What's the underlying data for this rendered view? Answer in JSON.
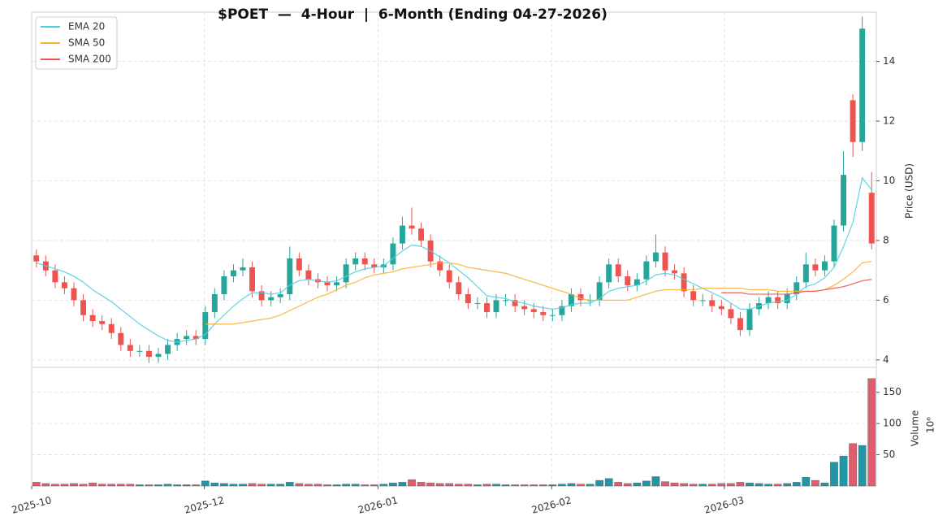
{
  "chart_data": [
    {
      "type": "candlestick",
      "title": "$POET  —  4-Hour  |  6-Month (Ending 04-27-2026)",
      "y_label": "Price (USD)",
      "xlim": [
        -0.5,
        89.5
      ],
      "ylim": [
        3.75,
        15.65
      ],
      "yticks": [
        4,
        6,
        8,
        10,
        12,
        14
      ],
      "grid": true,
      "legend": "upper left",
      "up_color": "#26a69a",
      "down_color": "#ef5350",
      "open": [
        7.5,
        7.3,
        7.0,
        6.6,
        6.4,
        6.0,
        5.5,
        5.3,
        5.2,
        4.9,
        4.5,
        4.3,
        4.3,
        4.1,
        4.2,
        4.5,
        4.7,
        4.8,
        4.7,
        5.6,
        6.2,
        6.8,
        7.0,
        7.1,
        6.3,
        6.0,
        6.1,
        6.2,
        7.4,
        7.0,
        6.7,
        6.6,
        6.5,
        6.6,
        7.2,
        7.4,
        7.2,
        7.1,
        7.2,
        7.9,
        8.5,
        8.4,
        8.0,
        7.3,
        7.0,
        6.6,
        6.2,
        5.9,
        5.9,
        5.6,
        6.0,
        6.0,
        5.8,
        5.7,
        5.6,
        5.5,
        5.5,
        5.8,
        6.2,
        6.0,
        6.0,
        6.6,
        7.2,
        6.8,
        6.5,
        6.7,
        7.3,
        7.6,
        7.0,
        6.9,
        6.3,
        6.0,
        6.0,
        5.8,
        5.7,
        5.4,
        5.0,
        5.7,
        5.9,
        6.1,
        5.9,
        6.2,
        6.6,
        7.2,
        7.0,
        7.3,
        8.5,
        12.7,
        11.3,
        9.6
      ],
      "high": [
        7.7,
        7.5,
        7.2,
        6.8,
        6.6,
        6.2,
        5.7,
        5.5,
        5.4,
        5.1,
        4.7,
        4.5,
        4.5,
        4.4,
        4.7,
        4.9,
        5.0,
        5.0,
        5.8,
        6.4,
        7.0,
        7.2,
        7.4,
        7.3,
        6.5,
        6.3,
        6.4,
        7.8,
        7.6,
        7.2,
        6.9,
        6.8,
        6.8,
        7.4,
        7.6,
        7.6,
        7.4,
        7.4,
        8.1,
        8.8,
        9.1,
        8.6,
        8.2,
        7.5,
        7.2,
        6.8,
        6.4,
        6.1,
        6.1,
        6.2,
        6.2,
        6.2,
        6.0,
        5.9,
        5.8,
        5.7,
        6.0,
        6.4,
        6.4,
        6.2,
        6.8,
        7.4,
        7.4,
        7.0,
        6.9,
        7.5,
        8.2,
        7.8,
        7.2,
        7.1,
        6.5,
        6.2,
        6.2,
        6.0,
        5.9,
        5.6,
        5.9,
        6.1,
        6.3,
        6.3,
        6.4,
        6.8,
        7.6,
        7.4,
        7.5,
        8.7,
        11.0,
        12.9,
        15.5,
        10.3
      ],
      "low": [
        7.1,
        6.8,
        6.4,
        6.2,
        5.8,
        5.3,
        5.1,
        5.0,
        4.7,
        4.3,
        4.1,
        4.1,
        3.9,
        3.9,
        4.0,
        4.3,
        4.5,
        4.5,
        4.5,
        5.4,
        6.0,
        6.6,
        6.8,
        6.1,
        5.8,
        5.8,
        5.9,
        6.0,
        6.8,
        6.5,
        6.4,
        6.3,
        6.3,
        6.4,
        7.0,
        7.0,
        6.9,
        6.9,
        7.0,
        7.7,
        8.2,
        7.8,
        7.1,
        6.8,
        6.4,
        6.0,
        5.7,
        5.7,
        5.4,
        5.4,
        5.8,
        5.6,
        5.5,
        5.4,
        5.3,
        5.3,
        5.3,
        5.6,
        5.8,
        5.8,
        5.8,
        6.4,
        6.6,
        6.3,
        6.3,
        6.5,
        7.1,
        6.8,
        6.7,
        6.1,
        5.8,
        5.8,
        5.6,
        5.5,
        5.2,
        4.8,
        4.8,
        5.5,
        5.7,
        5.7,
        5.7,
        6.0,
        6.4,
        6.8,
        6.8,
        7.1,
        8.3,
        10.8,
        11.0,
        7.7
      ],
      "close": [
        7.3,
        7.0,
        6.6,
        6.4,
        6.0,
        5.5,
        5.3,
        5.2,
        4.9,
        4.5,
        4.3,
        4.3,
        4.1,
        4.2,
        4.5,
        4.7,
        4.8,
        4.7,
        5.6,
        6.2,
        6.8,
        7.0,
        7.1,
        6.3,
        6.0,
        6.1,
        6.2,
        7.4,
        7.0,
        6.7,
        6.6,
        6.5,
        6.6,
        7.2,
        7.4,
        7.2,
        7.1,
        7.2,
        7.9,
        8.5,
        8.4,
        8.0,
        7.3,
        7.0,
        6.6,
        6.2,
        5.9,
        5.9,
        5.6,
        6.0,
        6.0,
        5.8,
        5.7,
        5.6,
        5.5,
        5.5,
        5.8,
        6.2,
        6.0,
        6.0,
        6.6,
        7.2,
        6.8,
        6.5,
        6.7,
        7.3,
        7.6,
        7.0,
        6.9,
        6.3,
        6.0,
        6.0,
        5.8,
        5.7,
        5.4,
        5.0,
        5.7,
        5.9,
        6.1,
        5.9,
        6.2,
        6.6,
        7.2,
        7.0,
        7.3,
        8.5,
        10.2,
        11.3,
        15.1,
        7.9
      ],
      "series": [
        {
          "name": "EMA 20",
          "color": "#4dd0e1",
          "values": [
            7.25,
            7.15,
            7.05,
            6.95,
            6.8,
            6.6,
            6.35,
            6.15,
            5.95,
            5.7,
            5.45,
            5.2,
            5.0,
            4.8,
            4.65,
            4.6,
            4.65,
            4.7,
            4.85,
            5.2,
            5.5,
            5.8,
            6.05,
            6.25,
            6.25,
            6.2,
            6.25,
            6.5,
            6.65,
            6.7,
            6.65,
            6.6,
            6.65,
            6.8,
            6.95,
            7.05,
            7.1,
            7.15,
            7.4,
            7.65,
            7.85,
            7.8,
            7.65,
            7.45,
            7.25,
            7.0,
            6.75,
            6.45,
            6.15,
            6.1,
            6.05,
            5.95,
            5.9,
            5.8,
            5.75,
            5.7,
            5.75,
            5.85,
            5.9,
            5.9,
            6.05,
            6.3,
            6.4,
            6.45,
            6.5,
            6.65,
            6.85,
            6.9,
            6.85,
            6.7,
            6.55,
            6.4,
            6.25,
            6.1,
            5.9,
            5.7,
            5.7,
            5.8,
            5.9,
            5.95,
            6.0,
            6.2,
            6.45,
            6.55,
            6.75,
            7.1,
            7.8,
            8.6,
            10.1,
            9.7
          ]
        },
        {
          "name": "SMA 50",
          "color": "#f9b233",
          "values": [
            null,
            null,
            null,
            null,
            null,
            null,
            null,
            null,
            null,
            null,
            null,
            null,
            null,
            null,
            null,
            null,
            null,
            null,
            5.2,
            5.2,
            5.2,
            5.2,
            5.25,
            5.3,
            5.35,
            5.4,
            5.5,
            5.65,
            5.8,
            5.95,
            6.1,
            6.2,
            6.35,
            6.5,
            6.6,
            6.75,
            6.85,
            6.9,
            6.95,
            7.05,
            7.1,
            7.15,
            7.2,
            7.25,
            7.25,
            7.2,
            7.1,
            7.05,
            7.0,
            6.95,
            6.9,
            6.8,
            6.7,
            6.6,
            6.5,
            6.4,
            6.3,
            6.2,
            6.05,
            6.0,
            6.0,
            6.0,
            6.0,
            6.0,
            6.1,
            6.2,
            6.3,
            6.35,
            6.35,
            6.35,
            6.35,
            6.4,
            6.4,
            6.4,
            6.4,
            6.4,
            6.35,
            6.35,
            6.35,
            6.3,
            6.3,
            6.3,
            6.3,
            6.3,
            6.35,
            6.5,
            6.7,
            6.95,
            7.25,
            7.3
          ]
        },
        {
          "name": "SMA 200",
          "color": "#ef5350",
          "values": [
            null,
            null,
            null,
            null,
            null,
            null,
            null,
            null,
            null,
            null,
            null,
            null,
            null,
            null,
            null,
            null,
            null,
            null,
            null,
            null,
            null,
            null,
            null,
            null,
            null,
            null,
            null,
            null,
            null,
            null,
            null,
            null,
            null,
            null,
            null,
            null,
            null,
            null,
            null,
            null,
            null,
            null,
            null,
            null,
            null,
            null,
            null,
            null,
            null,
            null,
            null,
            null,
            null,
            null,
            null,
            null,
            null,
            null,
            null,
            null,
            null,
            null,
            null,
            null,
            null,
            null,
            null,
            null,
            null,
            null,
            null,
            null,
            null,
            6.25,
            6.25,
            6.25,
            6.2,
            6.2,
            6.2,
            6.2,
            6.2,
            6.25,
            6.3,
            6.3,
            6.35,
            6.4,
            6.45,
            6.55,
            6.65,
            6.7
          ]
        }
      ]
    },
    {
      "type": "bar",
      "y_label": "Volume",
      "y_offset_label": "10⁶",
      "xlim": [
        -0.5,
        89.5
      ],
      "xticks": [
        {
          "value": -0.5,
          "label": "2025-10"
        },
        {
          "value": 17.9,
          "label": "2025-12"
        },
        {
          "value": 36.4,
          "label": "2026-01"
        },
        {
          "value": 54.9,
          "label": "2026-02"
        },
        {
          "value": 73.3,
          "label": "2026-03"
        }
      ],
      "ylim": [
        0,
        190
      ],
      "yticks": [
        50,
        100,
        150
      ],
      "grid": true,
      "up_color": "#2196a6",
      "down_color": "#e05d6f",
      "values": [
        6,
        4,
        3,
        3,
        4,
        3,
        5,
        3,
        3,
        3,
        3,
        2,
        2,
        2,
        3,
        2,
        2,
        2,
        8,
        5,
        4,
        3,
        3,
        4,
        3,
        3,
        3,
        6,
        4,
        3,
        3,
        2,
        2,
        3,
        3,
        2,
        2,
        3,
        5,
        6,
        10,
        6,
        5,
        4,
        4,
        3,
        3,
        2,
        3,
        3,
        2,
        2,
        2,
        2,
        2,
        2,
        3,
        4,
        3,
        3,
        9,
        12,
        6,
        4,
        5,
        8,
        15,
        7,
        5,
        4,
        3,
        3,
        3,
        4,
        4,
        6,
        5,
        4,
        3,
        3,
        4,
        6,
        14,
        9,
        5,
        38,
        48,
        68,
        65,
        172
      ]
    }
  ]
}
